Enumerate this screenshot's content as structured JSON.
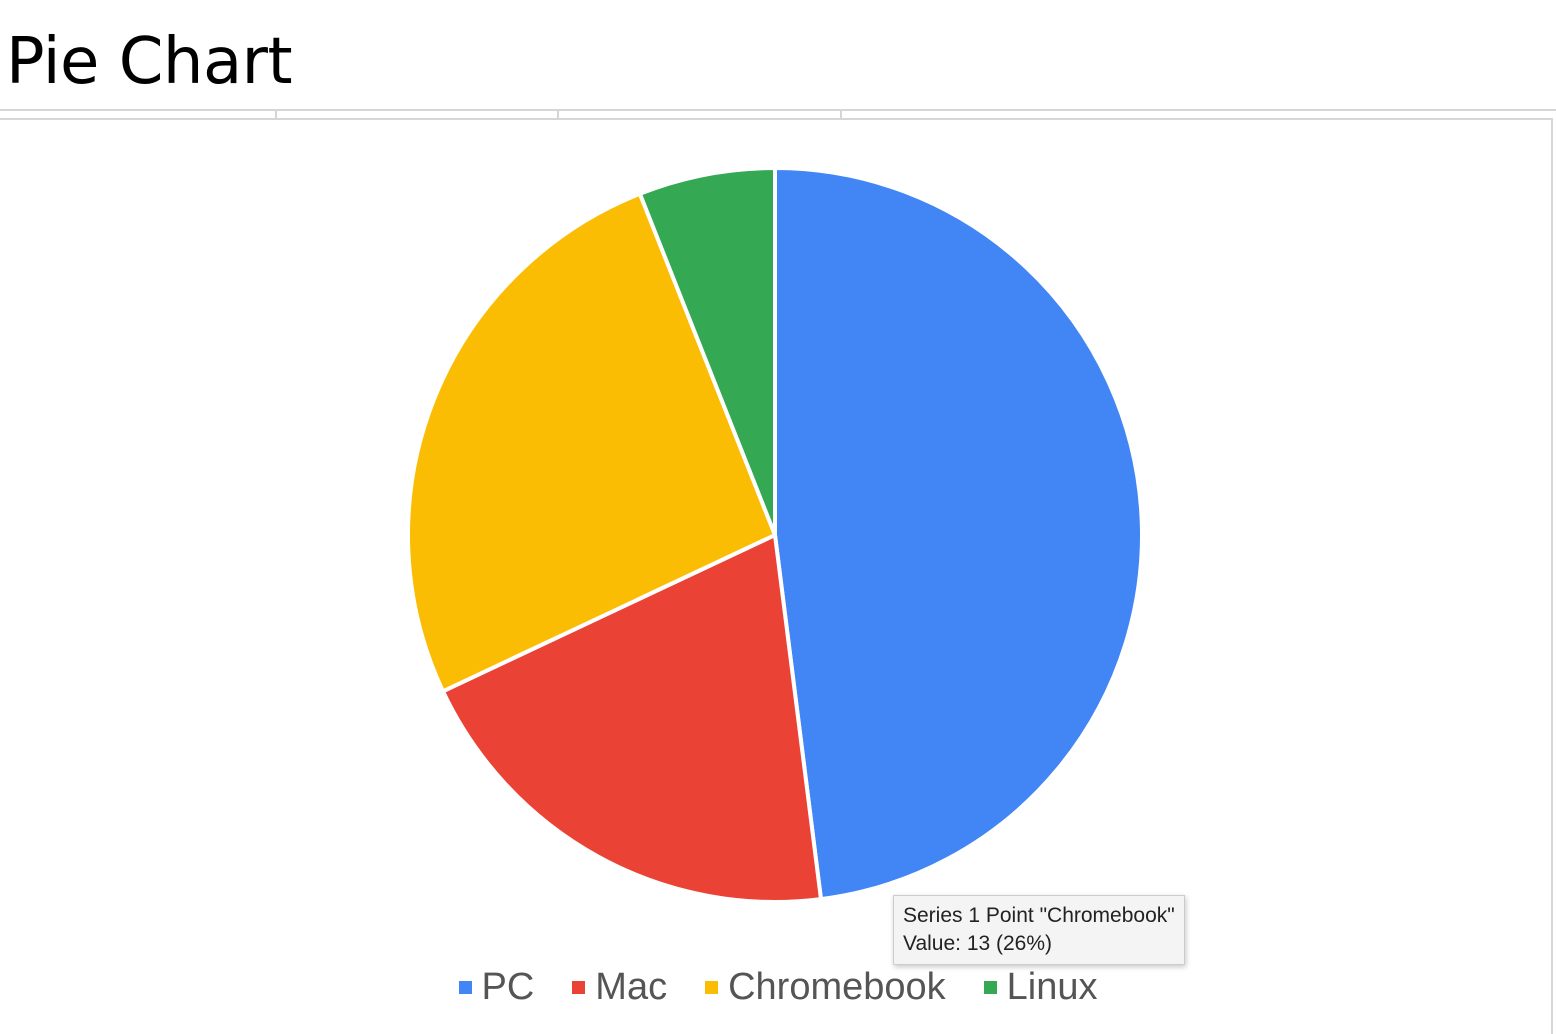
{
  "header": {
    "title": "Pie Chart"
  },
  "chart_data": {
    "type": "pie",
    "title": "",
    "categories": [
      "PC",
      "Mac",
      "Chromebook",
      "Linux"
    ],
    "series": [
      {
        "values": [
          24,
          10,
          13,
          3
        ]
      }
    ],
    "colors": [
      "#4285f4",
      "#ea4335",
      "#fbbc04",
      "#34a853"
    ],
    "slice_border_color": "#ffffff",
    "legend": {
      "position": "bottom"
    }
  },
  "tooltip": {
    "line1": "Series 1 Point \"Chromebook\"",
    "line2": "Value: 13 (26%)"
  }
}
